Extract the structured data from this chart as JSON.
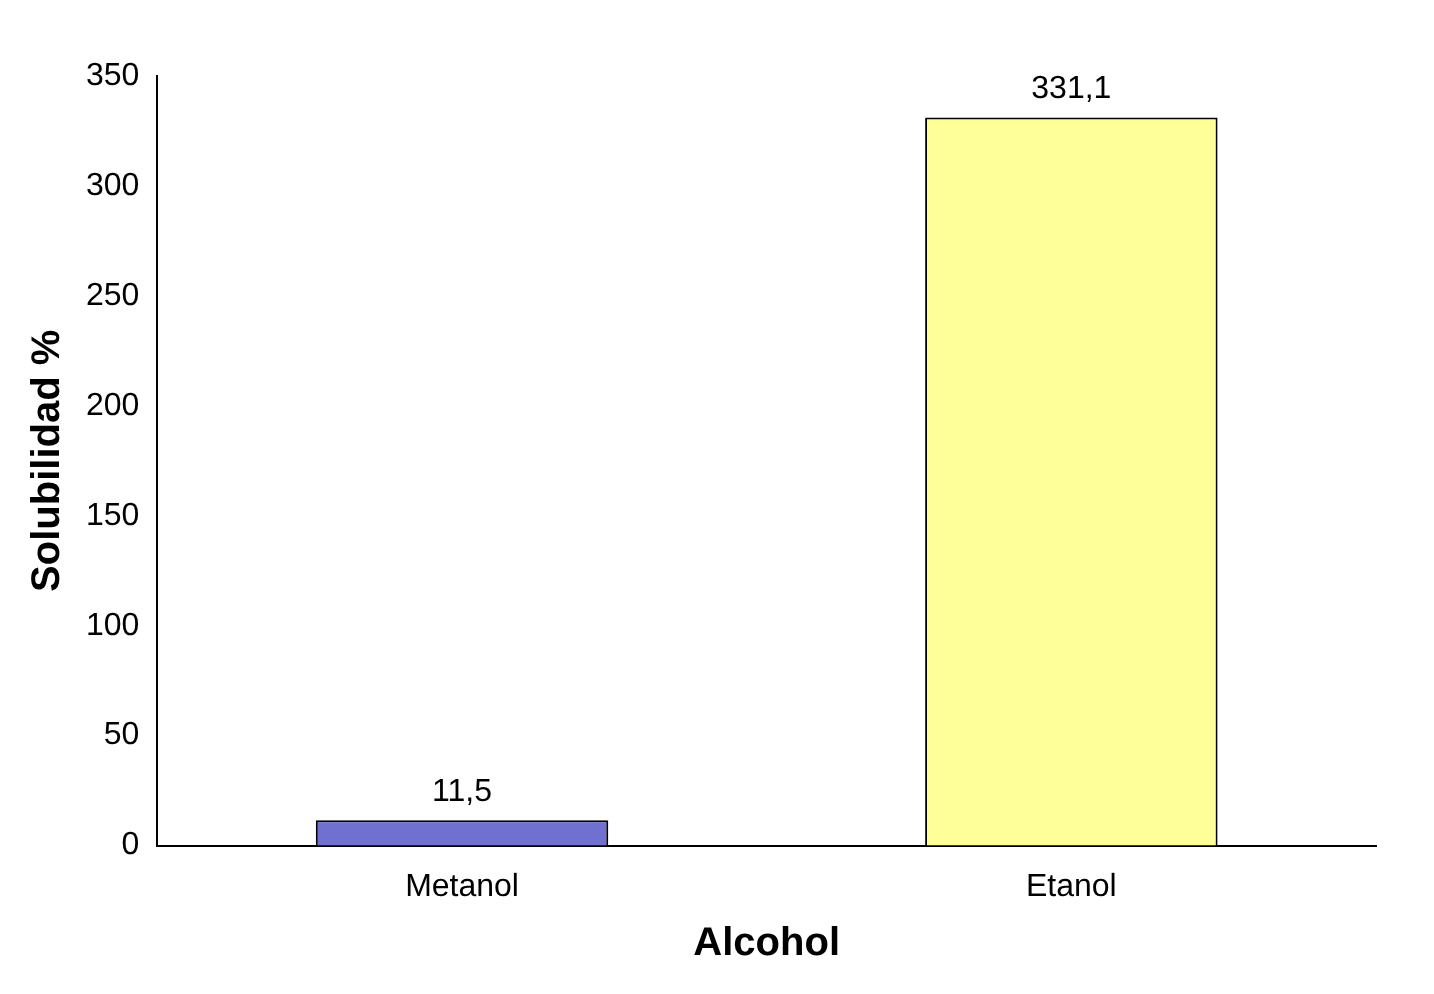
{
  "chart_data": {
    "type": "bar",
    "xlabel": "Alcohol",
    "ylabel": "Solubilidad %",
    "categories": [
      "Metanol",
      "Etanol"
    ],
    "values": [
      11.5,
      331.1
    ],
    "value_labels": [
      "11,5",
      "331,1"
    ],
    "colors": [
      "#7070d0",
      "#ffff99"
    ],
    "ylim": [
      0,
      350
    ],
    "yticks": [
      0,
      50,
      100,
      150,
      200,
      250,
      300,
      350
    ],
    "grid": false,
    "legend": false
  }
}
